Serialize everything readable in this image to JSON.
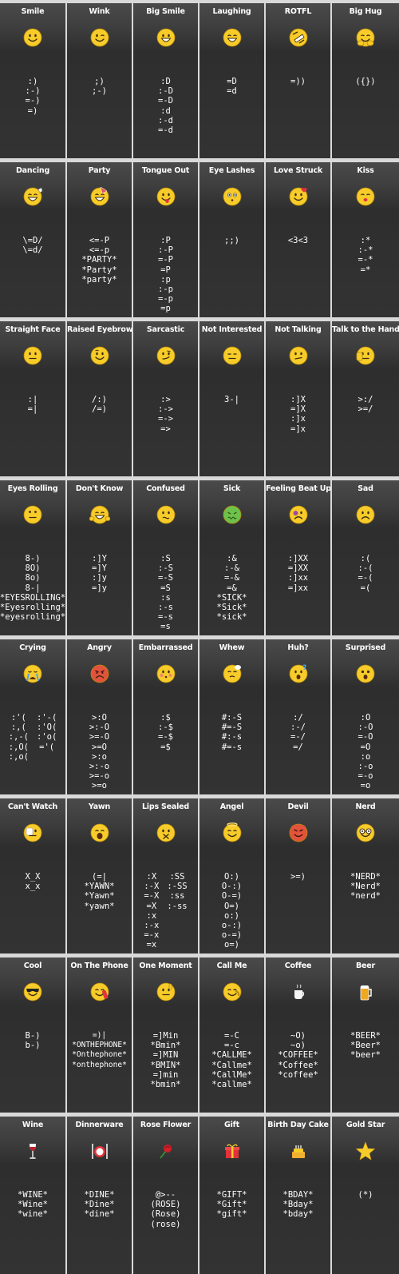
{
  "emoticons": [
    {
      "name": "Smile",
      "icon": "smile-icon",
      "columns": [
        [
          ":)",
          ":-)",
          "=-)",
          "=)"
        ]
      ]
    },
    {
      "name": "Wink",
      "icon": "wink-icon",
      "columns": [
        [
          ";)",
          ";-)"
        ]
      ]
    },
    {
      "name": "Big Smile",
      "icon": "big-smile-icon",
      "columns": [
        [
          ":D",
          ":-D",
          "=-D",
          ":d",
          ":-d",
          "=-d"
        ]
      ]
    },
    {
      "name": "Laughing",
      "icon": "laughing-icon",
      "columns": [
        [
          "=D",
          "=d"
        ]
      ]
    },
    {
      "name": "ROTFL",
      "icon": "rotfl-icon",
      "columns": [
        [
          "=))"
        ]
      ]
    },
    {
      "name": "Big Hug",
      "icon": "big-hug-icon",
      "columns": [
        [
          "({})"
        ]
      ]
    },
    {
      "name": "Dancing",
      "icon": "dancing-icon",
      "columns": [
        [
          "\\=D/",
          "\\=d/"
        ]
      ]
    },
    {
      "name": "Party",
      "icon": "party-icon",
      "columns": [
        [
          "<=-P",
          "<=-p",
          "*PARTY*",
          "*Party*",
          "*party*"
        ]
      ]
    },
    {
      "name": "Tongue Out",
      "icon": "tongue-out-icon",
      "columns": [
        [
          ":P",
          ":-P",
          "=-P",
          "=P",
          ":p",
          ":-p",
          "=-p",
          "=p"
        ]
      ]
    },
    {
      "name": "Eye Lashes",
      "icon": "eye-lashes-icon",
      "columns": [
        [
          ";;)"
        ]
      ]
    },
    {
      "name": "Love Struck",
      "icon": "love-struck-icon",
      "columns": [
        [
          "<3<3"
        ]
      ]
    },
    {
      "name": "Kiss",
      "icon": "kiss-icon",
      "columns": [
        [
          ":*",
          ":-*",
          "=-*",
          "=*"
        ]
      ]
    },
    {
      "name": "Straight Face",
      "icon": "straight-face-icon",
      "columns": [
        [
          ":|",
          "=|"
        ]
      ]
    },
    {
      "name": "Raised Eyebrow",
      "icon": "raised-eyebrow-icon",
      "columns": [
        [
          "/:)",
          "/=)"
        ]
      ]
    },
    {
      "name": "Sarcastic",
      "icon": "sarcastic-icon",
      "columns": [
        [
          ":>",
          ":->",
          "=->",
          "=>"
        ]
      ]
    },
    {
      "name": "Not Interested",
      "icon": "not-interested-icon",
      "columns": [
        [
          "3-|"
        ]
      ]
    },
    {
      "name": "Not Talking",
      "icon": "not-talking-icon",
      "columns": [
        [
          ":]X",
          "=]X",
          ":]x",
          "=]x"
        ]
      ]
    },
    {
      "name": "Talk to the Hand",
      "icon": "talk-to-the-hand-icon",
      "columns": [
        [
          ">:/",
          ">=/"
        ]
      ]
    },
    {
      "name": "Eyes Rolling",
      "icon": "eyes-rolling-icon",
      "columns": [
        [
          "8-)",
          "8O)",
          "8o)",
          "8-|",
          "*EYESROLLING*",
          "*Eyesrolling*",
          "*eyesrolling*"
        ]
      ]
    },
    {
      "name": "Don't Know",
      "icon": "dont-know-icon",
      "columns": [
        [
          ":]Y",
          "=]Y",
          ":]y",
          "=]y"
        ]
      ]
    },
    {
      "name": "Confused",
      "icon": "confused-icon",
      "columns": [
        [
          ":S",
          ":-S",
          "=-S",
          "=S",
          ":s",
          ":-s",
          "=-s",
          "=s"
        ]
      ]
    },
    {
      "name": "Sick",
      "icon": "sick-icon",
      "columns": [
        [
          ":&",
          ":-&",
          "=-&",
          "=&",
          "*SICK*",
          "*Sick*",
          "*sick*"
        ]
      ]
    },
    {
      "name": "Feeling Beat Up",
      "icon": "feeling-beat-up-icon",
      "columns": [
        [
          ":]XX",
          "=]XX",
          ":]xx",
          "=]xx"
        ]
      ]
    },
    {
      "name": "Sad",
      "icon": "sad-icon",
      "columns": [
        [
          ":(",
          ":-(",
          "=-(",
          "=("
        ]
      ]
    },
    {
      "name": "Crying",
      "icon": "crying-icon",
      "columns": [
        [
          ":'(",
          ":,(",
          ":,-(",
          ":,O(",
          ":,o("
        ],
        [
          ":'-(",
          ":'O(",
          ":'o(",
          "='("
        ]
      ]
    },
    {
      "name": "Angry",
      "icon": "angry-icon",
      "columns": [
        [
          ">:O",
          ">:-O",
          ">=-O",
          ">=O",
          ">:o",
          ">:-o",
          ">=-o",
          ">=o"
        ]
      ]
    },
    {
      "name": "Embarrassed",
      "icon": "embarrassed-icon",
      "columns": [
        [
          ":$",
          ":-$",
          "=-$",
          "=$"
        ]
      ]
    },
    {
      "name": "Whew",
      "icon": "whew-icon",
      "columns": [
        [
          "#:-S",
          "#=-S",
          "#:-s",
          "#=-s"
        ]
      ]
    },
    {
      "name": "Huh?",
      "icon": "huh-icon",
      "columns": [
        [
          ":/",
          ":-/",
          "=-/",
          "=/"
        ]
      ]
    },
    {
      "name": "Surprised",
      "icon": "surprised-icon",
      "columns": [
        [
          ":O",
          ":-O",
          "=-O",
          "=O",
          ":o",
          ":-o",
          "=-o",
          "=o"
        ]
      ]
    },
    {
      "name": "Can't Watch",
      "icon": "cant-watch-icon",
      "columns": [
        [
          "X_X",
          "x_x"
        ]
      ]
    },
    {
      "name": "Yawn",
      "icon": "yawn-icon",
      "columns": [
        [
          "(=|",
          "*YAWN*",
          "*Yawn*",
          "*yawn*"
        ]
      ]
    },
    {
      "name": "Lips Sealed",
      "icon": "lips-sealed-icon",
      "columns": [
        [
          ":X",
          ":-X",
          "=-X",
          "=X",
          ":x",
          ":-x",
          "=-x",
          "=x"
        ],
        [
          ":SS",
          ":-SS",
          ":ss",
          ":-ss"
        ]
      ]
    },
    {
      "name": "Angel",
      "icon": "angel-icon",
      "columns": [
        [
          "O:)",
          "O-:)",
          "O-=)",
          "O=)",
          "o:)",
          "o-:)",
          "o-=)",
          "o=)"
        ]
      ]
    },
    {
      "name": "Devil",
      "icon": "devil-icon",
      "columns": [
        [
          ">=)"
        ]
      ]
    },
    {
      "name": "Nerd",
      "icon": "nerd-icon",
      "columns": [
        [
          "*NERD*",
          "*Nerd*",
          "*nerd*"
        ]
      ]
    },
    {
      "name": "Cool",
      "icon": "cool-icon",
      "columns": [
        [
          "B-)",
          "b-)"
        ]
      ]
    },
    {
      "name": "On The Phone",
      "icon": "on-the-phone-icon",
      "small": true,
      "columns": [
        [
          "=)|",
          "*ONTHEPHONE*",
          "*Onthephone*",
          "*onthephone*"
        ]
      ]
    },
    {
      "name": "One Moment",
      "icon": "one-moment-icon",
      "columns": [
        [
          "=]Min",
          "*Bmin*",
          "=]MIN",
          "*BMIN*",
          "=]min",
          "*bmin*"
        ]
      ]
    },
    {
      "name": "Call Me",
      "icon": "call-me-icon",
      "columns": [
        [
          "=-C",
          "=-c",
          "*CALLME*",
          "*Callme*",
          "*CallMe*",
          "*callme*"
        ]
      ]
    },
    {
      "name": "Coffee",
      "icon": "coffee-icon",
      "columns": [
        [
          "~O)",
          "~o)",
          "*COFFEE*",
          "*Coffee*",
          "*coffee*"
        ]
      ]
    },
    {
      "name": "Beer",
      "icon": "beer-icon",
      "columns": [
        [
          "*BEER*",
          "*Beer*",
          "*beer*"
        ]
      ]
    },
    {
      "name": "Wine",
      "icon": "wine-icon",
      "columns": [
        [
          "*WINE*",
          "*Wine*",
          "*wine*"
        ]
      ]
    },
    {
      "name": "Dinnerware",
      "icon": "dinnerware-icon",
      "columns": [
        [
          "*DINE*",
          "*Dine*",
          "*dine*"
        ]
      ]
    },
    {
      "name": "Rose Flower",
      "icon": "rose-flower-icon",
      "columns": [
        [
          "@>--",
          "(ROSE)",
          "(Rose)",
          "(rose)"
        ]
      ]
    },
    {
      "name": "Gift",
      "icon": "gift-icon",
      "columns": [
        [
          "*GIFT*",
          "*Gift*",
          "*gift*"
        ]
      ]
    },
    {
      "name": "Birth Day Cake",
      "icon": "birthday-cake-icon",
      "columns": [
        [
          "*BDAY*",
          "*Bday*",
          "*bday*"
        ]
      ]
    },
    {
      "name": "Gold Star",
      "icon": "gold-star-icon",
      "columns": [
        [
          "(*)"
        ]
      ]
    }
  ],
  "colors": {
    "emoji_yellow": "#f7cc2a",
    "emoji_outline": "#b88a0a",
    "sick_green": "#6cc24a",
    "angry_red": "#e2533c",
    "heart_red": "#e0343a",
    "text": "#ffffff",
    "cell_bg": "#333333",
    "grid_line": "#d9d9d9"
  }
}
